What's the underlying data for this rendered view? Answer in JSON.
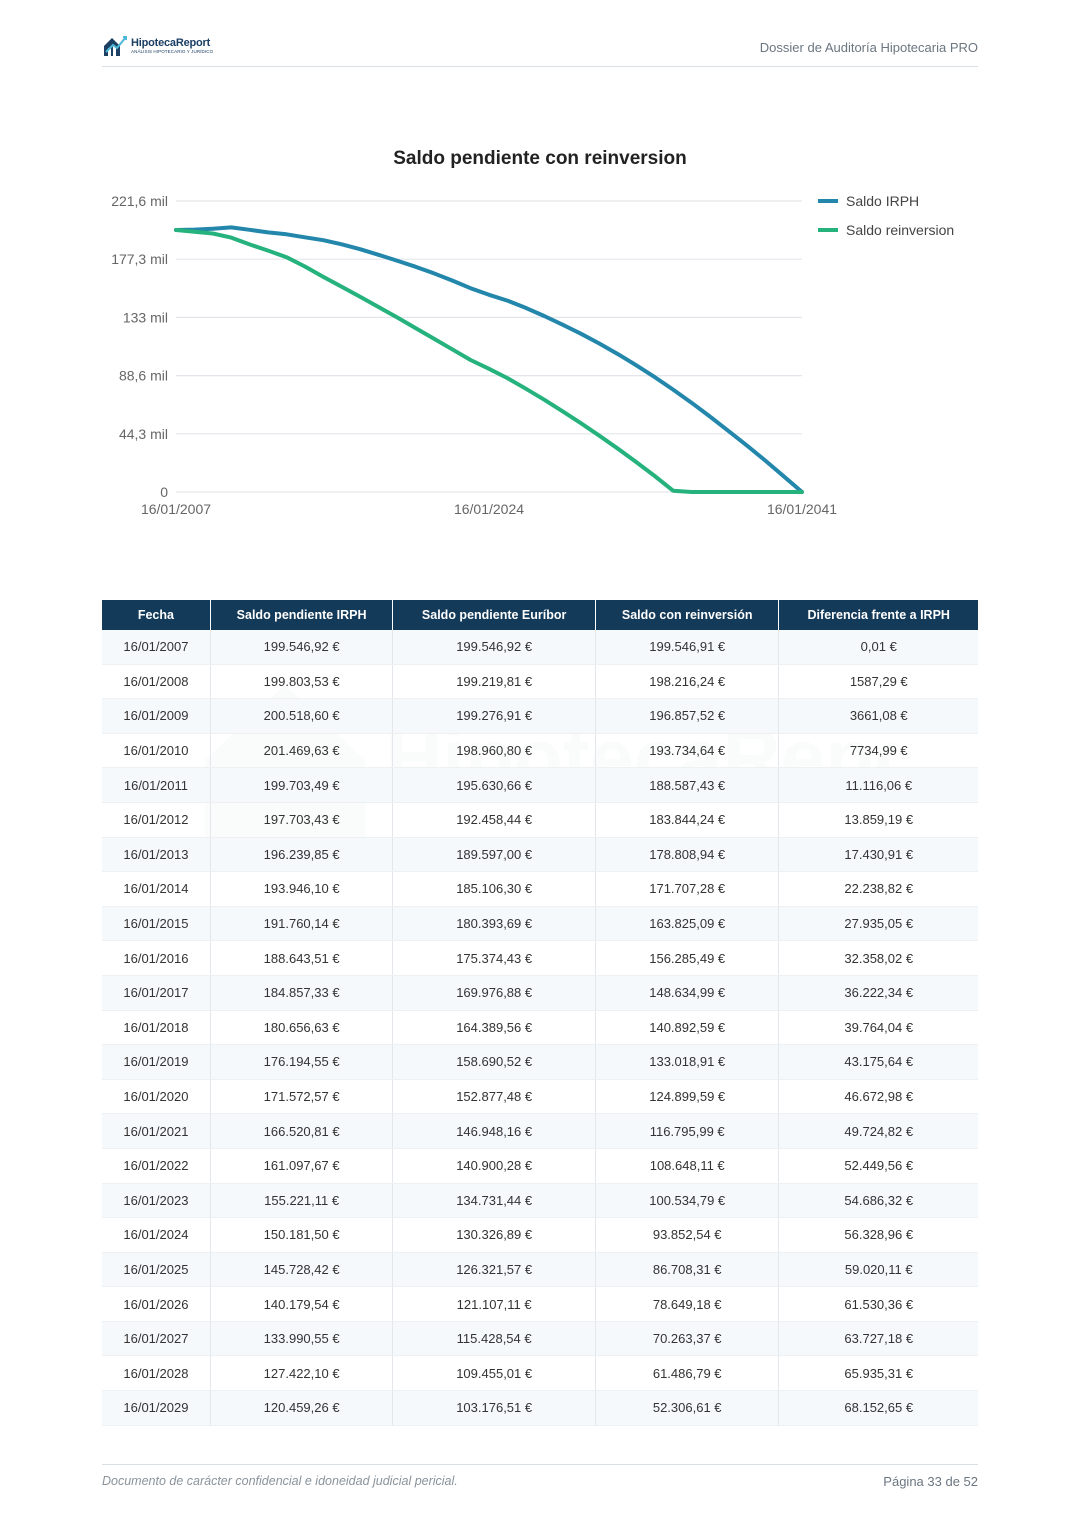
{
  "header": {
    "logo_name": "HipotecaReport",
    "logo_sub": "ANÁLISIS HIPOTECARIO Y JURÍDICO",
    "title": "Dossier de Auditoría Hipotecaria PRO"
  },
  "chart_data": {
    "type": "line",
    "title": "Saldo pendiente con reinversion",
    "x_ticks": [
      "16/01/2007",
      "16/01/2024",
      "16/01/2041"
    ],
    "y_ticks": [
      "0",
      "44,3 mil",
      "88,6 mil",
      "133 mil",
      "177,3 mil",
      "221,6 mil"
    ],
    "ylim": [
      0,
      221600
    ],
    "xlim": [
      2007,
      2041
    ],
    "legend_position": "right",
    "grid": true,
    "series": [
      {
        "name": "Saldo IRPH",
        "color": "#2386ab",
        "x": [
          2007,
          2008,
          2009,
          2010,
          2011,
          2012,
          2013,
          2014,
          2015,
          2016,
          2017,
          2018,
          2019,
          2020,
          2021,
          2022,
          2023,
          2024,
          2025,
          2026,
          2027,
          2028,
          2029,
          2030,
          2031,
          2032,
          2033,
          2034,
          2035,
          2036,
          2037,
          2038,
          2039,
          2040,
          2041
        ],
        "values": [
          199546.92,
          199803.53,
          200518.6,
          201469.63,
          199703.49,
          197703.43,
          196239.85,
          193946.1,
          191760.14,
          188643.51,
          184857.33,
          180656.63,
          176194.55,
          171572.57,
          166520.81,
          161097.67,
          155221.11,
          150181.5,
          145728.42,
          140179.54,
          133990.55,
          127422.1,
          120459.26,
          113000,
          105000,
          96500,
          87500,
          78000,
          68000,
          57500,
          46500,
          35500,
          24000,
          12000,
          0
        ]
      },
      {
        "name": "Saldo reinversion",
        "color": "#25b27c",
        "x": [
          2007,
          2008,
          2009,
          2010,
          2011,
          2012,
          2013,
          2014,
          2015,
          2016,
          2017,
          2018,
          2019,
          2020,
          2021,
          2022,
          2023,
          2024,
          2025,
          2026,
          2027,
          2028,
          2029,
          2030,
          2031,
          2032,
          2033,
          2034,
          2035,
          2041
        ],
        "values": [
          199546.91,
          198216.24,
          196857.52,
          193734.64,
          188587.43,
          183844.24,
          178808.94,
          171707.28,
          163825.09,
          156285.49,
          148634.99,
          140892.59,
          133018.91,
          124899.59,
          116795.99,
          108648.11,
          100534.79,
          93852.54,
          86708.31,
          78649.18,
          70263.37,
          61486.79,
          52306.61,
          42800,
          33000,
          22800,
          12200,
          1000,
          0,
          0
        ]
      }
    ]
  },
  "table": {
    "headers": [
      "Fecha",
      "Saldo pendiente IRPH",
      "Saldo pendiente Euríbor",
      "Saldo con reinversión",
      "Diferencia frente a IRPH"
    ],
    "rows": [
      [
        "16/01/2007",
        "199.546,92 €",
        "199.546,92 €",
        "199.546,91 €",
        "0,01 €"
      ],
      [
        "16/01/2008",
        "199.803,53 €",
        "199.219,81 €",
        "198.216,24 €",
        "1587,29 €"
      ],
      [
        "16/01/2009",
        "200.518,60 €",
        "199.276,91 €",
        "196.857,52 €",
        "3661,08 €"
      ],
      [
        "16/01/2010",
        "201.469,63 €",
        "198.960,80 €",
        "193.734,64 €",
        "7734,99 €"
      ],
      [
        "16/01/2011",
        "199.703,49 €",
        "195.630,66 €",
        "188.587,43 €",
        "11.116,06 €"
      ],
      [
        "16/01/2012",
        "197.703,43 €",
        "192.458,44 €",
        "183.844,24 €",
        "13.859,19 €"
      ],
      [
        "16/01/2013",
        "196.239,85 €",
        "189.597,00 €",
        "178.808,94 €",
        "17.430,91 €"
      ],
      [
        "16/01/2014",
        "193.946,10 €",
        "185.106,30 €",
        "171.707,28 €",
        "22.238,82 €"
      ],
      [
        "16/01/2015",
        "191.760,14 €",
        "180.393,69 €",
        "163.825,09 €",
        "27.935,05 €"
      ],
      [
        "16/01/2016",
        "188.643,51 €",
        "175.374,43 €",
        "156.285,49 €",
        "32.358,02 €"
      ],
      [
        "16/01/2017",
        "184.857,33 €",
        "169.976,88 €",
        "148.634,99 €",
        "36.222,34 €"
      ],
      [
        "16/01/2018",
        "180.656,63 €",
        "164.389,56 €",
        "140.892,59 €",
        "39.764,04 €"
      ],
      [
        "16/01/2019",
        "176.194,55 €",
        "158.690,52 €",
        "133.018,91 €",
        "43.175,64 €"
      ],
      [
        "16/01/2020",
        "171.572,57 €",
        "152.877,48 €",
        "124.899,59 €",
        "46.672,98 €"
      ],
      [
        "16/01/2021",
        "166.520,81 €",
        "146.948,16 €",
        "116.795,99 €",
        "49.724,82 €"
      ],
      [
        "16/01/2022",
        "161.097,67 €",
        "140.900,28 €",
        "108.648,11 €",
        "52.449,56 €"
      ],
      [
        "16/01/2023",
        "155.221,11 €",
        "134.731,44 €",
        "100.534,79 €",
        "54.686,32 €"
      ],
      [
        "16/01/2024",
        "150.181,50 €",
        "130.326,89 €",
        "93.852,54 €",
        "56.328,96 €"
      ],
      [
        "16/01/2025",
        "145.728,42 €",
        "126.321,57 €",
        "86.708,31 €",
        "59.020,11 €"
      ],
      [
        "16/01/2026",
        "140.179,54 €",
        "121.107,11 €",
        "78.649,18 €",
        "61.530,36 €"
      ],
      [
        "16/01/2027",
        "133.990,55 €",
        "115.428,54 €",
        "70.263,37 €",
        "63.727,18 €"
      ],
      [
        "16/01/2028",
        "127.422,10 €",
        "109.455,01 €",
        "61.486,79 €",
        "65.935,31 €"
      ],
      [
        "16/01/2029",
        "120.459,26 €",
        "103.176,51 €",
        "52.306,61 €",
        "68.152,65 €"
      ]
    ]
  },
  "footer": {
    "note": "Documento de carácter confidencial e idoneidad judicial pericial.",
    "page": "Página 33 de 52"
  }
}
